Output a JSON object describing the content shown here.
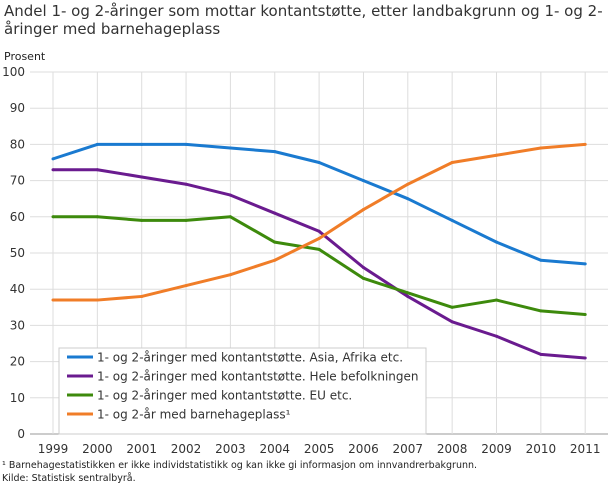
{
  "chart_data": {
    "type": "line",
    "title": "Andel 1- og 2-åringer som mottar kontantstøtte, etter landbakgrunn og 1- og 2-åringer med barnehageplass",
    "ylabel": "Prosent",
    "xlabel": "",
    "ylim": [
      0,
      100
    ],
    "yticks": [
      0,
      10,
      20,
      30,
      40,
      50,
      60,
      70,
      80,
      90,
      100
    ],
    "grid": true,
    "legend_position": "bottom-left",
    "categories": [
      "1999",
      "2000",
      "2001",
      "2002",
      "2003",
      "2004",
      "2005",
      "2006",
      "2007",
      "2008",
      "2009",
      "2010",
      "2011"
    ],
    "series": [
      {
        "name": "1- og 2-åringer med kontantstøtte. Asia, Afrika etc.",
        "color": "#1a7ad0",
        "values": [
          76,
          80,
          80,
          80,
          79,
          78,
          75,
          70,
          65,
          59,
          53,
          48,
          47
        ]
      },
      {
        "name": "1- og 2-åringer med kontantstøtte. Hele befolkningen",
        "color": "#6a1b8f",
        "values": [
          73,
          73,
          71,
          69,
          66,
          61,
          56,
          46,
          38,
          31,
          27,
          22,
          21
        ]
      },
      {
        "name": "1- og 2-åringer med kontantstøtte. EU etc.",
        "color": "#3d8a0c",
        "values": [
          60,
          60,
          59,
          59,
          60,
          53,
          51,
          43,
          39,
          35,
          37,
          34,
          33
        ]
      },
      {
        "name": "1- og 2-år med barnehageplass¹",
        "color": "#f07d28",
        "values": [
          37,
          37,
          38,
          41,
          44,
          48,
          54,
          62,
          69,
          75,
          77,
          79,
          80
        ]
      }
    ]
  },
  "footnote": "¹ Barnehagestatistikken er ikke individstatistikk og kan ikke gi informasjon om innvandrerbakgrunn.",
  "source": "Kilde: Statistisk sentralbyrå."
}
